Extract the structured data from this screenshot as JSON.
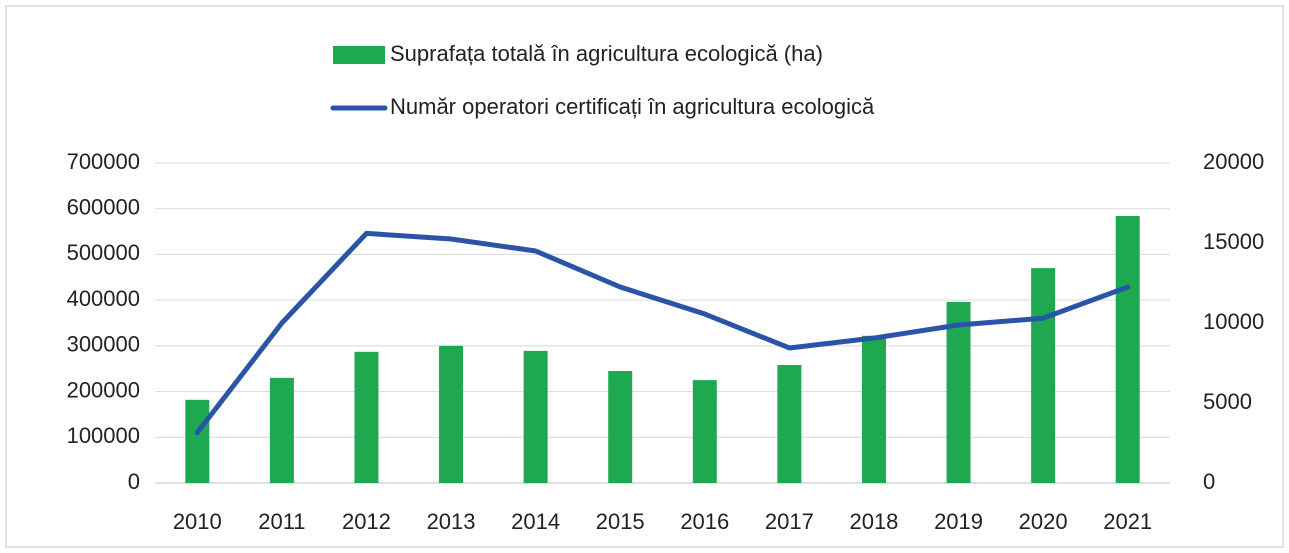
{
  "chart_data": {
    "type": "bar_line",
    "categories": [
      "2010",
      "2011",
      "2012",
      "2013",
      "2014",
      "2015",
      "2016",
      "2017",
      "2018",
      "2019",
      "2020",
      "2021"
    ],
    "series": [
      {
        "name": "Suprafața totală în agricultura ecologică (ha)",
        "type": "bar",
        "color": "#1ea84f",
        "axis": "y",
        "values": [
          182000,
          230000,
          287000,
          300000,
          289000,
          245000,
          225000,
          258000,
          322000,
          396000,
          470000,
          584000
        ]
      },
      {
        "name": "Număr operatori certificați în agricultura ecologică",
        "type": "line",
        "color": "#2a55a6",
        "axis": "y2",
        "values": [
          3150,
          10000,
          15600,
          15250,
          14500,
          12250,
          10560,
          8440,
          9060,
          9875,
          10300,
          12250
        ]
      }
    ],
    "ylim": [
      0,
      700000
    ],
    "yticks": [
      0,
      100000,
      200000,
      300000,
      400000,
      500000,
      600000,
      700000
    ],
    "y2lim": [
      0,
      20000
    ],
    "y2ticks": [
      0,
      5000,
      10000,
      15000,
      20000
    ],
    "grid": true
  }
}
